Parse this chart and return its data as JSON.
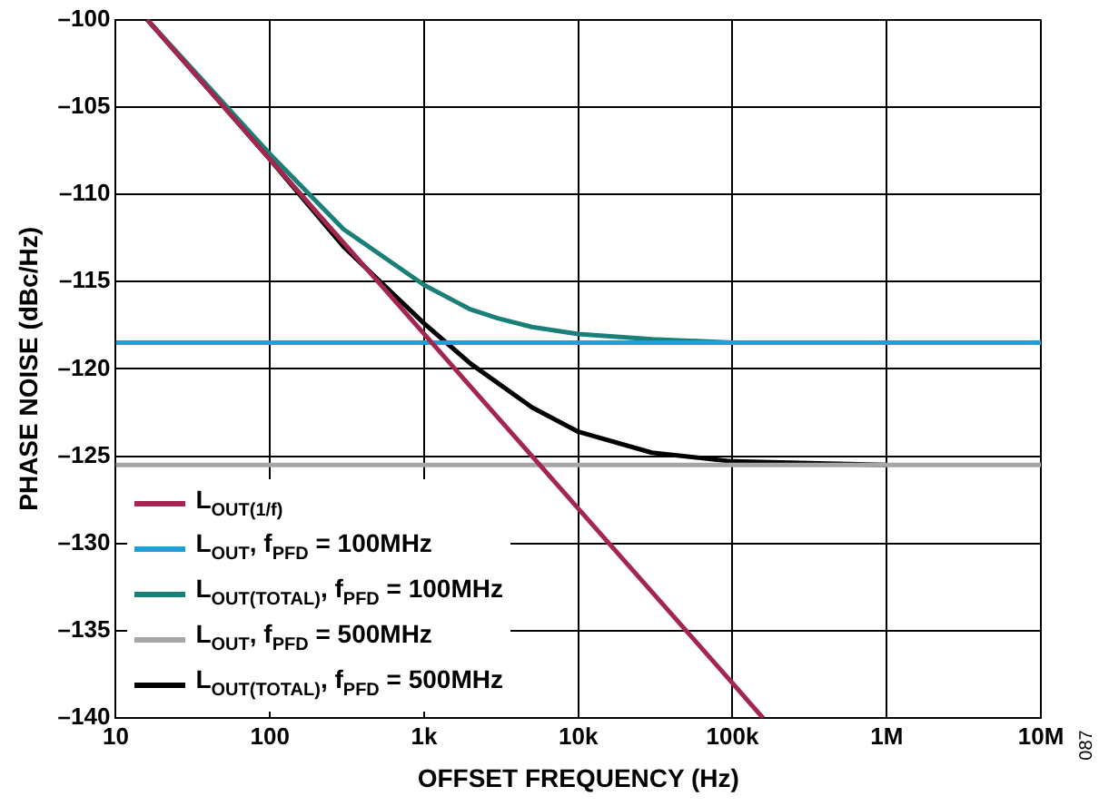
{
  "chart_data": {
    "type": "line",
    "xlabel": "OFFSET FREQUENCY (Hz)",
    "ylabel": "PHASE NOISE (dBc/Hz)",
    "log": "x",
    "grid": true,
    "legend": "bottom left",
    "marker": "none",
    "line_style": "solid",
    "xlim": [
      10,
      10000000
    ],
    "xticks": [
      10,
      100,
      {
        "value": 1000,
        "label": "1k"
      },
      {
        "value": 10000,
        "label": "10k"
      },
      {
        "value": 100000,
        "label": "100k"
      },
      {
        "value": 1000000,
        "label": "1M"
      },
      {
        "value": 10000000,
        "label": "10M"
      }
    ],
    "ylim": [
      -140,
      -100
    ],
    "yticks": [
      {
        "value": -140,
        "label": "–140"
      },
      {
        "value": -135,
        "label": "–135"
      },
      {
        "value": -130,
        "label": "–130"
      },
      {
        "value": -125,
        "label": "–125"
      },
      {
        "value": -120,
        "label": "–120"
      },
      {
        "value": -115,
        "label": "–115"
      },
      {
        "value": -110,
        "label": "–110"
      },
      {
        "value": -105,
        "label": "–105"
      },
      {
        "value": -100,
        "label": "–100"
      }
    ],
    "series": [
      {
        "name": "L$_{OUT(1/f)}$",
        "color": "#a3264f",
        "x": [
          16,
          100,
          1000,
          10000,
          100000,
          158000
        ],
        "values": [
          -100,
          -108,
          -118,
          -128,
          -138,
          -140
        ]
      },
      {
        "name": "L$_{OUT}$, f$_{PFD}$ = 100MHz",
        "color": "#1ba1d8",
        "x": [
          10,
          10000000
        ],
        "values": [
          -118.5,
          -118.5
        ]
      },
      {
        "name": "L$_{OUT(TOTAL)}$, f$_{PFD}$ = 100MHz",
        "color": "#1a7f76",
        "x": [
          16,
          100,
          300,
          1000,
          2000,
          3000,
          5000,
          10000,
          30000,
          100000,
          1000000
        ],
        "values": [
          -100,
          -107.7,
          -112,
          -115.2,
          -116.6,
          -117.1,
          -117.6,
          -118,
          -118.3,
          -118.5,
          -118.5
        ]
      },
      {
        "name": "L$_{OUT}$, f$_{PFD}$ = 500MHz",
        "color": "#a6a6a6",
        "x": [
          10,
          10000000
        ],
        "values": [
          -125.5,
          -125.5
        ]
      },
      {
        "name": "L$_{OUT(TOTAL)}$, f$_{PFD}$ = 500MHz",
        "color": "#000000",
        "x": [
          16,
          100,
          300,
          1000,
          2000,
          5000,
          10000,
          30000,
          100000,
          1000000
        ],
        "values": [
          -100,
          -108,
          -113,
          -117.4,
          -119.7,
          -122.2,
          -123.6,
          -124.8,
          -125.3,
          -125.5
        ]
      }
    ],
    "annotations": [
      "087"
    ]
  }
}
